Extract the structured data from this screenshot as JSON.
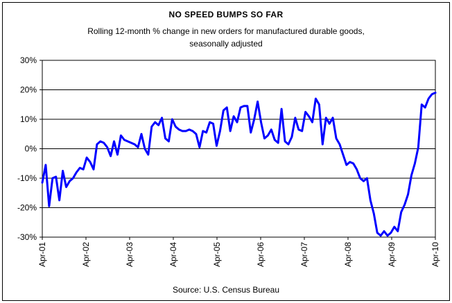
{
  "chart_data": {
    "type": "line",
    "title": "NO SPEED BUMPS SO FAR",
    "subtitle_lines": [
      "Rolling 12-month % change in new orders for manufactured durable goods,",
      "seasonally adjusted"
    ],
    "source": "Source: U.S. Census Bureau",
    "xlabel": "",
    "ylabel": "",
    "x_tick_labels": [
      "Apr-01",
      "Apr-02",
      "Apr-03",
      "Apr-04",
      "Apr-05",
      "Apr-06",
      "Apr-07",
      "Apr-08",
      "Apr-09",
      "Apr-10"
    ],
    "y_tick_labels": [
      "30%",
      "20%",
      "10%",
      "0%",
      "-10%",
      "-20%",
      "-30%"
    ],
    "y_ticks": [
      30,
      20,
      10,
      0,
      -10,
      -20,
      -30
    ],
    "ylim": [
      -30,
      30
    ],
    "x_start": "Apr-01",
    "x_end": "Apr-10",
    "grid": "horizontal",
    "legend": "none",
    "series_color": "#0000ff",
    "series": [
      {
        "values": [
          -11.5,
          -5.5,
          -19.5,
          -10,
          -9.5,
          -17.5,
          -7.5,
          -13,
          -11,
          -10,
          -8,
          -6.5,
          -7,
          -3,
          -4.5,
          -7,
          1.5,
          2.5,
          2,
          0.5,
          -2.5,
          2.5,
          -2,
          4.5,
          3,
          2.5,
          2,
          1.5,
          0.5,
          5,
          0,
          -2,
          7.5,
          9,
          8,
          10.5,
          3.5,
          2.5,
          10,
          7.5,
          6.5,
          6,
          6,
          6.5,
          6,
          5,
          0.5,
          6,
          5.5,
          9,
          8.5,
          1,
          6,
          13,
          14,
          6,
          11,
          9,
          14,
          14.5,
          14.5,
          5.5,
          10,
          16,
          9,
          3.5,
          4.5,
          6.5,
          3,
          2,
          13.5,
          2.5,
          1.5,
          4,
          10.5,
          6.5,
          6,
          12.5,
          11,
          9,
          17,
          15,
          1.5,
          10.5,
          8.5,
          10.5,
          3.5,
          1.5,
          -2,
          -5.5,
          -4.5,
          -5,
          -7,
          -10,
          -11,
          -10,
          -17.5,
          -22,
          -28.5,
          -29.5,
          -28,
          -29.5,
          -28.5,
          -26.5,
          -28,
          -21.5,
          -19,
          -15.5,
          -9,
          -5,
          0.5,
          15,
          14,
          17,
          18.5,
          19
        ]
      }
    ]
  }
}
